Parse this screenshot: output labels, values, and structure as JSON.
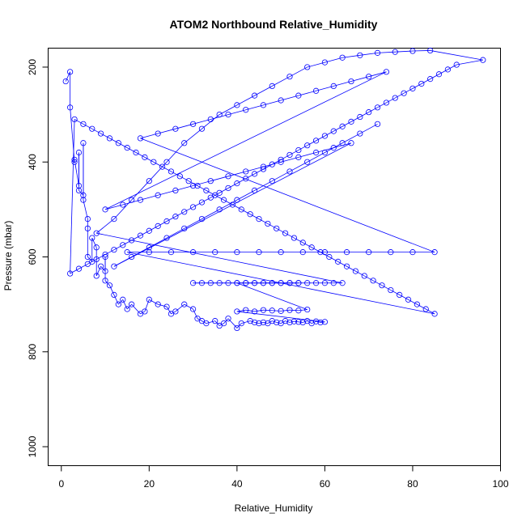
{
  "chart_data": {
    "type": "scatter",
    "title": "ATOM2 Northbound Relative_Humidity",
    "xlabel": "Relative_Humidity",
    "ylabel": "Pressure (mbar)",
    "xlim": [
      -3,
      100
    ],
    "ylim": [
      1040,
      160
    ],
    "y_reversed": true,
    "xticks": [
      0,
      20,
      40,
      60,
      80,
      100
    ],
    "yticks": [
      200,
      400,
      600,
      800,
      1000
    ],
    "grid": false,
    "legend": "none",
    "series": [
      {
        "connected": true,
        "marker": "open-circle",
        "x": [
          1,
          2,
          2,
          3,
          3,
          4,
          4,
          4,
          5,
          5,
          5,
          6,
          6,
          6,
          7,
          7,
          8,
          8,
          9,
          10,
          10,
          10,
          11,
          12,
          13,
          14,
          15,
          16,
          18,
          19,
          20,
          22,
          24,
          25,
          26,
          28,
          30,
          31,
          32,
          33,
          35,
          36,
          37,
          38,
          40,
          41,
          43,
          44,
          45,
          46,
          47,
          48,
          49,
          50,
          51,
          52,
          53,
          54,
          55,
          56,
          57,
          58,
          59,
          60,
          40,
          42,
          44,
          46,
          48,
          50,
          52,
          54,
          56,
          40,
          42,
          44,
          46,
          48,
          50,
          52,
          54,
          30,
          32,
          34,
          36,
          38,
          40,
          42,
          44,
          46,
          48,
          50,
          52,
          54,
          56,
          58,
          60,
          62,
          64,
          8,
          12,
          16,
          20,
          24,
          28,
          32,
          36,
          40,
          44,
          48,
          52,
          56,
          60,
          64,
          68,
          72,
          76,
          80,
          84,
          96,
          90,
          88,
          86,
          84,
          82,
          80,
          78,
          76,
          74,
          72,
          70,
          68,
          66,
          64,
          62,
          60,
          58,
          56,
          54,
          52,
          50,
          48,
          46,
          44,
          42,
          40,
          38,
          36,
          34,
          32,
          30,
          28,
          26,
          24,
          22,
          20,
          18,
          16,
          14,
          12,
          10,
          8,
          6,
          4,
          2,
          3,
          5,
          7,
          9,
          11,
          13,
          15,
          17,
          19,
          21,
          23,
          25,
          27,
          29,
          31,
          33,
          35,
          37,
          39,
          41,
          43,
          45,
          47,
          49,
          51,
          53,
          55,
          57,
          59,
          61,
          63,
          65,
          67,
          69,
          71,
          73,
          75,
          77,
          79,
          81,
          83,
          85,
          15,
          20,
          25,
          30,
          35,
          40,
          45,
          50,
          55,
          60,
          65,
          70,
          75,
          80,
          85,
          18,
          22,
          26,
          30,
          34,
          38,
          42,
          46,
          50,
          54,
          58,
          62,
          66,
          70,
          74,
          10,
          14,
          18,
          22,
          26,
          30,
          34,
          38,
          42,
          46,
          50,
          54,
          58,
          62,
          66,
          12,
          16,
          20,
          24,
          28,
          32,
          36,
          40,
          44,
          48,
          52,
          56,
          60,
          64,
          68,
          72
        ],
        "y": [
          230,
          210,
          285,
          400,
          395,
          450,
          380,
          460,
          470,
          360,
          480,
          520,
          540,
          600,
          610,
          560,
          580,
          640,
          620,
          630,
          600,
          650,
          660,
          680,
          700,
          690,
          710,
          700,
          720,
          715,
          690,
          700,
          705,
          720,
          715,
          700,
          710,
          730,
          735,
          740,
          735,
          745,
          740,
          730,
          750,
          740,
          735,
          738,
          740,
          738,
          740,
          735,
          738,
          740,
          735,
          738,
          736,
          737,
          738,
          735,
          740,
          736,
          738,
          737,
          715,
          712,
          715,
          712,
          713,
          714,
          712,
          713,
          711,
          655,
          655,
          655,
          655,
          655,
          655,
          655,
          655,
          655,
          655,
          655,
          655,
          655,
          655,
          655,
          655,
          655,
          655,
          655,
          655,
          655,
          655,
          655,
          655,
          655,
          655,
          550,
          520,
          480,
          440,
          400,
          360,
          330,
          300,
          280,
          260,
          240,
          220,
          200,
          190,
          180,
          175,
          170,
          168,
          166,
          165,
          185,
          195,
          205,
          215,
          225,
          235,
          245,
          255,
          265,
          275,
          285,
          295,
          305,
          315,
          325,
          335,
          345,
          355,
          365,
          375,
          385,
          395,
          405,
          415,
          425,
          435,
          445,
          455,
          465,
          475,
          485,
          495,
          505,
          515,
          525,
          535,
          545,
          555,
          565,
          575,
          585,
          595,
          605,
          615,
          625,
          635,
          310,
          320,
          330,
          340,
          350,
          360,
          370,
          380,
          390,
          400,
          410,
          420,
          430,
          440,
          450,
          460,
          470,
          480,
          490,
          500,
          510,
          520,
          530,
          540,
          550,
          560,
          570,
          580,
          590,
          600,
          610,
          620,
          630,
          640,
          650,
          660,
          670,
          680,
          690,
          700,
          710,
          720,
          590,
          590,
          590,
          590,
          590,
          590,
          590,
          590,
          590,
          590,
          590,
          590,
          590,
          590,
          590,
          350,
          340,
          330,
          320,
          310,
          300,
          290,
          280,
          270,
          260,
          250,
          240,
          230,
          220,
          210,
          500,
          490,
          480,
          470,
          460,
          450,
          440,
          430,
          420,
          410,
          400,
          390,
          380,
          370,
          360,
          620,
          600,
          580,
          560,
          540,
          520,
          500,
          480,
          460,
          440,
          420,
          400,
          380,
          360,
          340,
          320
        ]
      }
    ]
  },
  "colors": {
    "series": "#0000ff",
    "axis": "#000000",
    "background": "#ffffff"
  }
}
